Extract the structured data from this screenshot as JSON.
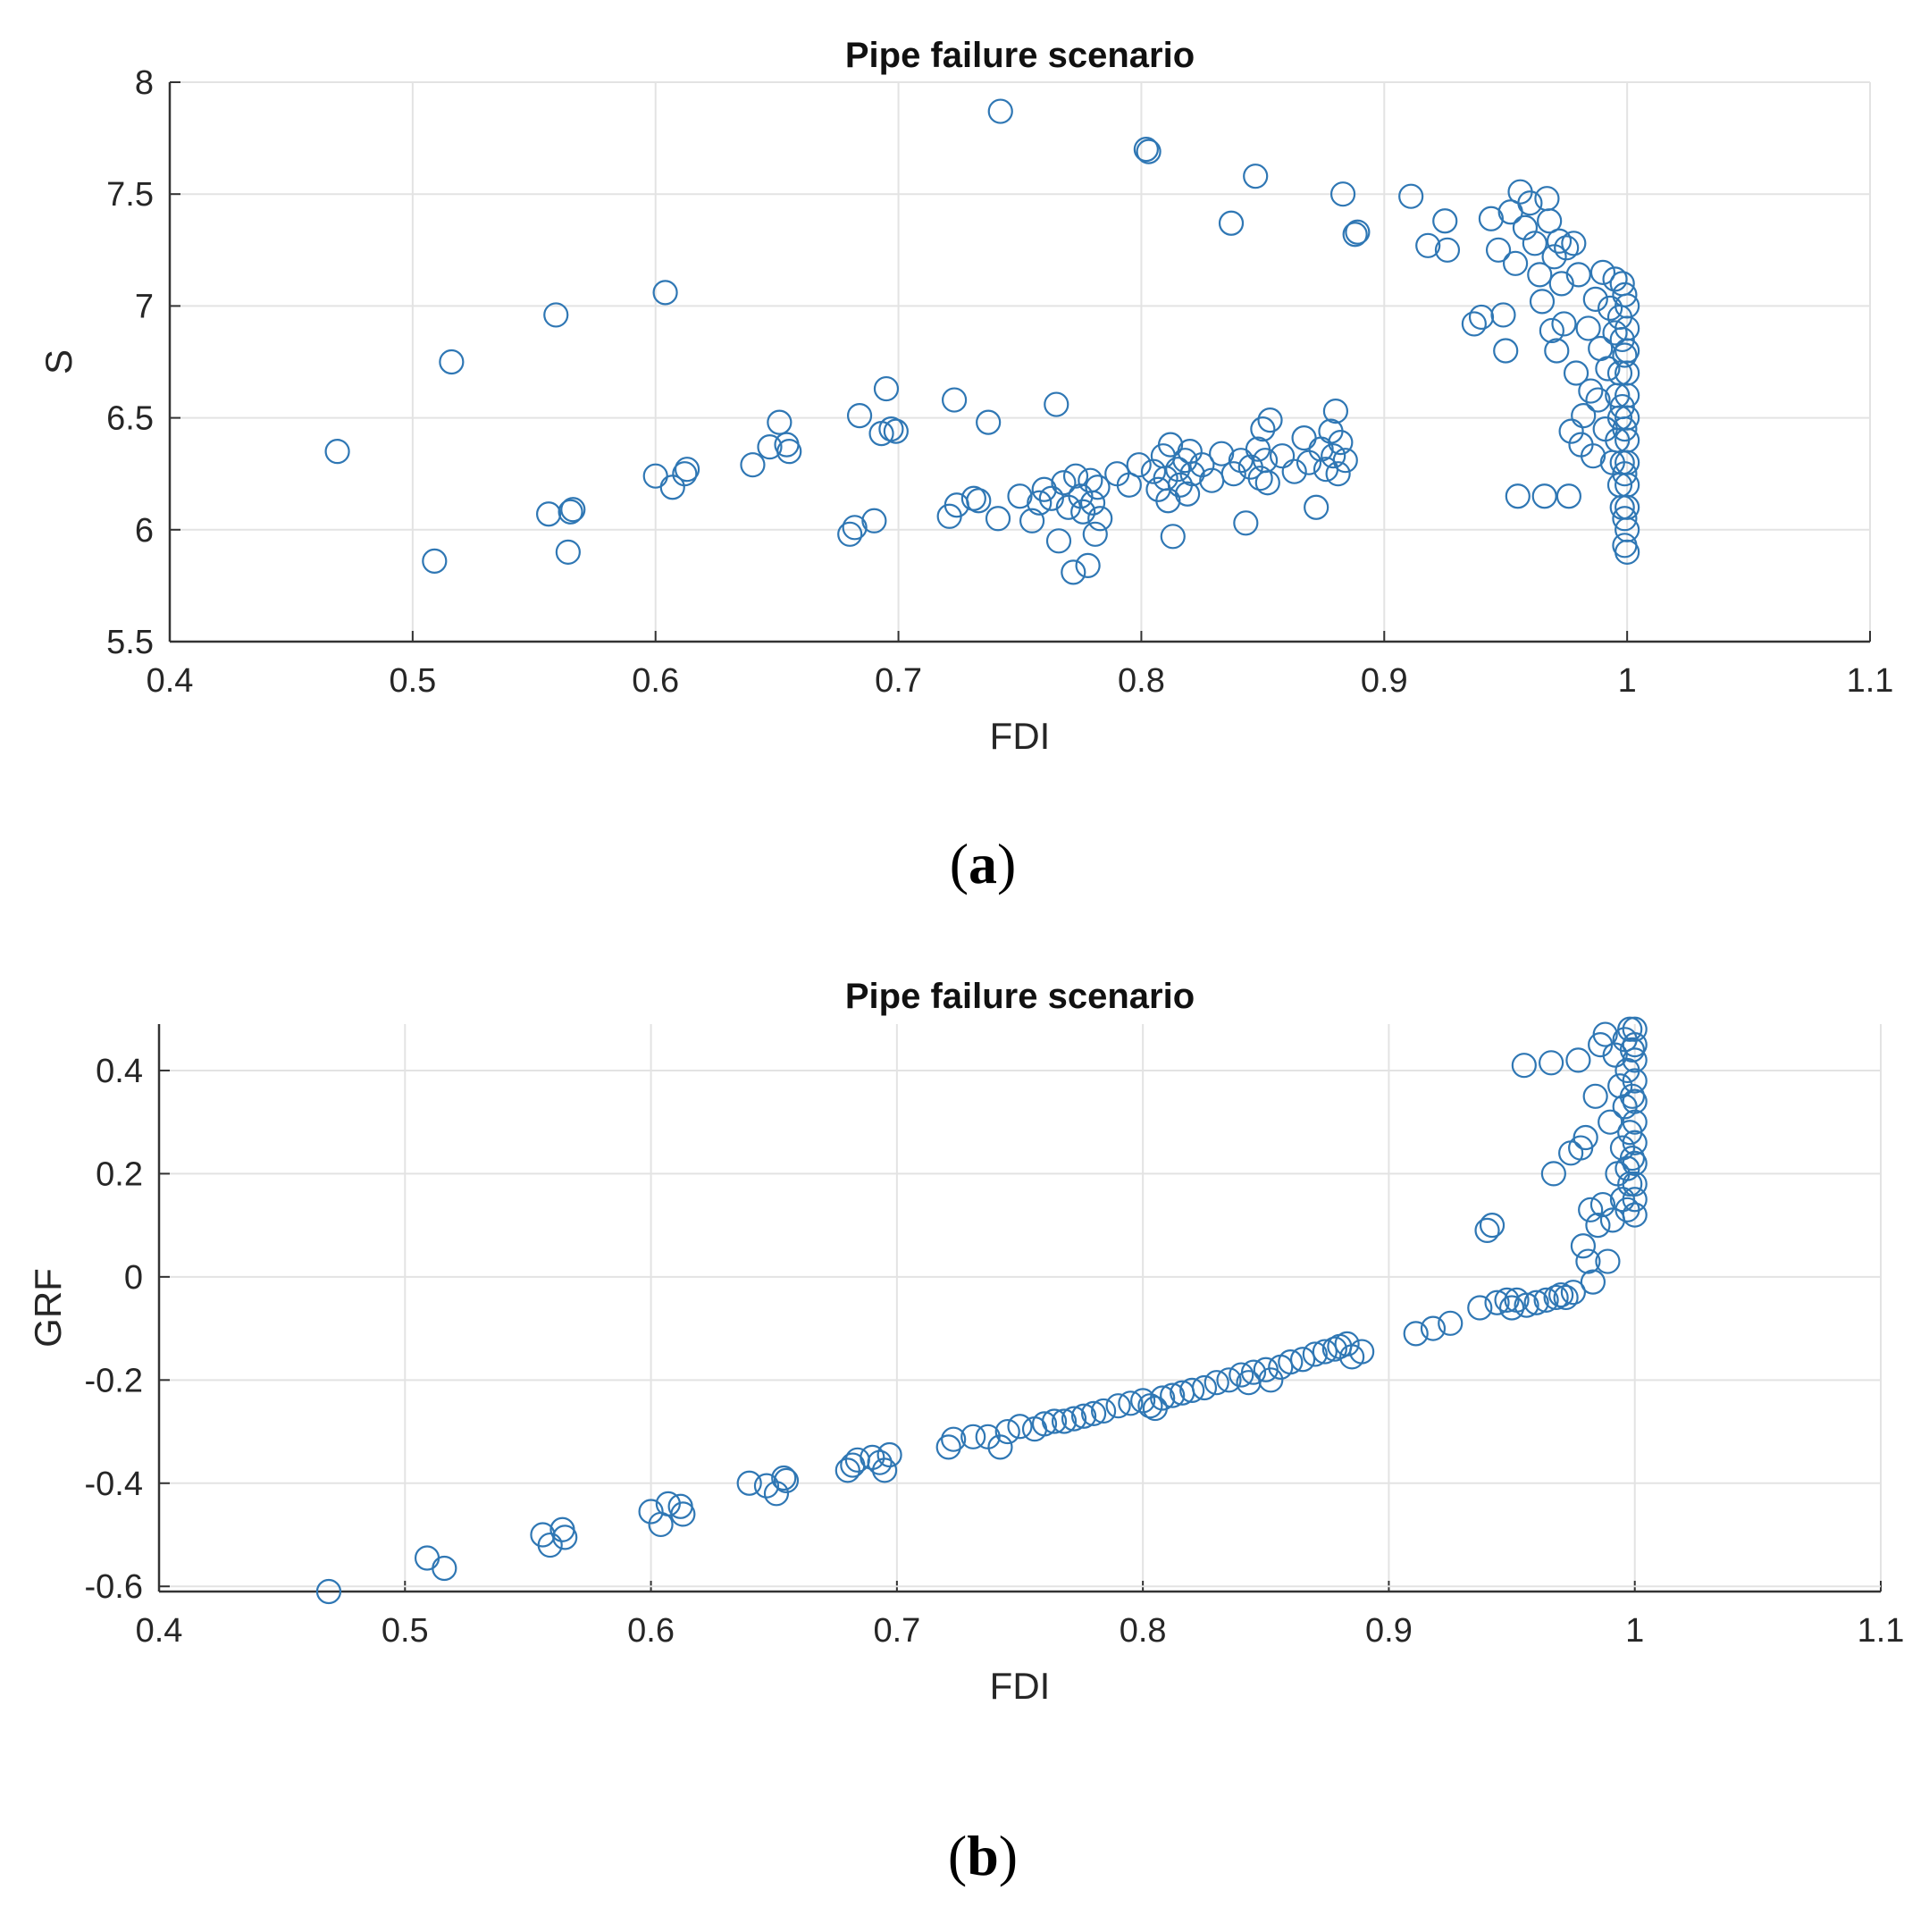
{
  "chart_data": [
    {
      "id": "a",
      "type": "scatter",
      "title": "Pipe failure scenario",
      "xlabel": "FDI",
      "ylabel": "S",
      "xlim": [
        0.4,
        1.1
      ],
      "ylim": [
        5.5,
        8
      ],
      "xticks": [
        "0.4",
        "0.5",
        "0.6",
        "0.7",
        "0.8",
        "0.9",
        "1",
        "1.1"
      ],
      "yticks": [
        "5.5",
        "6",
        "6.5",
        "7",
        "7.5",
        "8"
      ],
      "grid": true,
      "marker": "open-circle",
      "color": "#2f77b4",
      "panel_label": "(a)",
      "points": [
        [
          0.469,
          6.35
        ],
        [
          0.509,
          5.86
        ],
        [
          0.516,
          6.75
        ],
        [
          0.556,
          6.07
        ],
        [
          0.559,
          6.96
        ],
        [
          0.564,
          5.9
        ],
        [
          0.565,
          6.08
        ],
        [
          0.566,
          6.09
        ],
        [
          0.6,
          6.24
        ],
        [
          0.604,
          7.06
        ],
        [
          0.607,
          6.19
        ],
        [
          0.612,
          6.25
        ],
        [
          0.613,
          6.27
        ],
        [
          0.64,
          6.29
        ],
        [
          0.647,
          6.37
        ],
        [
          0.651,
          6.48
        ],
        [
          0.654,
          6.38
        ],
        [
          0.655,
          6.35
        ],
        [
          0.68,
          5.98
        ],
        [
          0.682,
          6.01
        ],
        [
          0.684,
          6.51
        ],
        [
          0.69,
          6.04
        ],
        [
          0.693,
          6.43
        ],
        [
          0.695,
          6.63
        ],
        [
          0.697,
          6.45
        ],
        [
          0.699,
          6.44
        ],
        [
          0.721,
          6.06
        ],
        [
          0.723,
          6.58
        ],
        [
          0.724,
          6.11
        ],
        [
          0.731,
          6.14
        ],
        [
          0.733,
          6.13
        ],
        [
          0.737,
          6.48
        ],
        [
          0.741,
          6.05
        ],
        [
          0.742,
          7.87
        ],
        [
          0.75,
          6.15
        ],
        [
          0.755,
          6.04
        ],
        [
          0.758,
          6.12
        ],
        [
          0.76,
          6.18
        ],
        [
          0.763,
          6.14
        ],
        [
          0.765,
          6.56
        ],
        [
          0.766,
          5.95
        ],
        [
          0.768,
          6.21
        ],
        [
          0.77,
          6.1
        ],
        [
          0.772,
          5.81
        ],
        [
          0.773,
          6.24
        ],
        [
          0.775,
          6.15
        ],
        [
          0.776,
          6.08
        ],
        [
          0.778,
          5.84
        ],
        [
          0.779,
          6.22
        ],
        [
          0.78,
          6.12
        ],
        [
          0.781,
          5.98
        ],
        [
          0.782,
          6.19
        ],
        [
          0.783,
          6.05
        ],
        [
          0.79,
          6.25
        ],
        [
          0.795,
          6.2
        ],
        [
          0.799,
          6.29
        ],
        [
          0.802,
          7.7
        ],
        [
          0.803,
          7.69
        ],
        [
          0.805,
          6.26
        ],
        [
          0.807,
          6.18
        ],
        [
          0.809,
          6.33
        ],
        [
          0.81,
          6.23
        ],
        [
          0.811,
          6.13
        ],
        [
          0.812,
          6.38
        ],
        [
          0.813,
          5.97
        ],
        [
          0.815,
          6.27
        ],
        [
          0.816,
          6.2
        ],
        [
          0.818,
          6.31
        ],
        [
          0.819,
          6.16
        ],
        [
          0.82,
          6.35
        ],
        [
          0.821,
          6.25
        ],
        [
          0.825,
          6.29
        ],
        [
          0.829,
          6.22
        ],
        [
          0.833,
          6.34
        ],
        [
          0.837,
          7.37
        ],
        [
          0.838,
          6.25
        ],
        [
          0.841,
          6.31
        ],
        [
          0.843,
          6.03
        ],
        [
          0.845,
          6.28
        ],
        [
          0.847,
          7.58
        ],
        [
          0.848,
          6.36
        ],
        [
          0.849,
          6.23
        ],
        [
          0.85,
          6.45
        ],
        [
          0.851,
          6.31
        ],
        [
          0.852,
          6.21
        ],
        [
          0.853,
          6.49
        ],
        [
          0.858,
          6.33
        ],
        [
          0.863,
          6.26
        ],
        [
          0.867,
          6.41
        ],
        [
          0.869,
          6.3
        ],
        [
          0.872,
          6.1
        ],
        [
          0.874,
          6.36
        ],
        [
          0.876,
          6.27
        ],
        [
          0.878,
          6.44
        ],
        [
          0.879,
          6.33
        ],
        [
          0.88,
          6.53
        ],
        [
          0.881,
          6.25
        ],
        [
          0.882,
          6.39
        ],
        [
          0.883,
          7.5
        ],
        [
          0.884,
          6.31
        ],
        [
          0.888,
          7.32
        ],
        [
          0.889,
          7.33
        ],
        [
          0.911,
          7.49
        ],
        [
          0.918,
          7.27
        ],
        [
          0.925,
          7.38
        ],
        [
          0.926,
          7.25
        ],
        [
          0.937,
          6.92
        ],
        [
          0.94,
          6.95
        ],
        [
          0.944,
          7.39
        ],
        [
          0.947,
          7.25
        ],
        [
          0.949,
          6.96
        ],
        [
          0.95,
          6.8
        ],
        [
          0.952,
          7.42
        ],
        [
          0.954,
          7.19
        ],
        [
          0.955,
          6.15
        ],
        [
          0.956,
          7.51
        ],
        [
          0.958,
          7.35
        ],
        [
          0.96,
          7.46
        ],
        [
          0.962,
          7.28
        ],
        [
          0.964,
          7.14
        ],
        [
          0.965,
          7.02
        ],
        [
          0.966,
          6.15
        ],
        [
          0.967,
          7.48
        ],
        [
          0.968,
          7.38
        ],
        [
          0.969,
          6.89
        ],
        [
          0.97,
          7.22
        ],
        [
          0.971,
          6.8
        ],
        [
          0.972,
          7.29
        ],
        [
          0.973,
          7.1
        ],
        [
          0.974,
          6.92
        ],
        [
          0.975,
          7.26
        ],
        [
          0.976,
          6.15
        ],
        [
          0.977,
          6.44
        ],
        [
          0.978,
          7.28
        ],
        [
          0.979,
          6.7
        ],
        [
          0.98,
          7.14
        ],
        [
          0.981,
          6.38
        ],
        [
          0.982,
          6.51
        ],
        [
          0.984,
          6.9
        ],
        [
          0.985,
          6.62
        ],
        [
          0.986,
          6.33
        ],
        [
          0.987,
          7.03
        ],
        [
          0.988,
          6.58
        ],
        [
          0.989,
          6.81
        ],
        [
          0.99,
          7.15
        ],
        [
          0.991,
          6.45
        ],
        [
          0.992,
          6.72
        ],
        [
          0.993,
          6.99
        ],
        [
          0.994,
          6.3
        ],
        [
          0.995,
          7.12
        ],
        [
          0.995,
          6.88
        ],
        [
          0.996,
          6.6
        ],
        [
          0.996,
          6.4
        ],
        [
          0.997,
          6.95
        ],
        [
          0.997,
          6.7
        ],
        [
          0.997,
          6.5
        ],
        [
          0.997,
          6.2
        ],
        [
          0.998,
          7.1
        ],
        [
          0.998,
          6.85
        ],
        [
          0.998,
          6.55
        ],
        [
          0.998,
          6.3
        ],
        [
          0.998,
          6.1
        ],
        [
          0.999,
          7.05
        ],
        [
          0.999,
          6.78
        ],
        [
          0.999,
          6.45
        ],
        [
          0.999,
          6.25
        ],
        [
          0.999,
          6.05
        ],
        [
          0.999,
          5.93
        ],
        [
          1.0,
          7.0
        ],
        [
          1.0,
          6.9
        ],
        [
          1.0,
          6.8
        ],
        [
          1.0,
          6.7
        ],
        [
          1.0,
          6.6
        ],
        [
          1.0,
          6.5
        ],
        [
          1.0,
          6.4
        ],
        [
          1.0,
          6.3
        ],
        [
          1.0,
          6.2
        ],
        [
          1.0,
          6.1
        ],
        [
          1.0,
          6.0
        ],
        [
          1.0,
          5.9
        ]
      ]
    },
    {
      "id": "b",
      "type": "scatter",
      "title": "Pipe failure scenario",
      "xlabel": "FDI",
      "ylabel": "GRF",
      "xlim": [
        0.4,
        1.1
      ],
      "ylim": [
        -0.61,
        0.49
      ],
      "xticks": [
        "0.4",
        "0.5",
        "0.6",
        "0.7",
        "0.8",
        "0.9",
        "1",
        "1.1"
      ],
      "yticks": [
        "-0.6",
        "-0.4",
        "-0.2",
        "0",
        "0.2",
        "0.4"
      ],
      "grid": true,
      "marker": "open-circle",
      "color": "#2f77b4",
      "panel_label": "(b)",
      "points": [
        [
          0.469,
          -0.61
        ],
        [
          0.509,
          -0.545
        ],
        [
          0.516,
          -0.565
        ],
        [
          0.556,
          -0.5
        ],
        [
          0.559,
          -0.52
        ],
        [
          0.564,
          -0.49
        ],
        [
          0.565,
          -0.505
        ],
        [
          0.6,
          -0.455
        ],
        [
          0.604,
          -0.48
        ],
        [
          0.607,
          -0.44
        ],
        [
          0.612,
          -0.445
        ],
        [
          0.613,
          -0.46
        ],
        [
          0.64,
          -0.4
        ],
        [
          0.647,
          -0.405
        ],
        [
          0.651,
          -0.42
        ],
        [
          0.654,
          -0.39
        ],
        [
          0.655,
          -0.395
        ],
        [
          0.68,
          -0.375
        ],
        [
          0.682,
          -0.365
        ],
        [
          0.684,
          -0.355
        ],
        [
          0.69,
          -0.35
        ],
        [
          0.693,
          -0.36
        ],
        [
          0.695,
          -0.375
        ],
        [
          0.697,
          -0.345
        ],
        [
          0.721,
          -0.33
        ],
        [
          0.723,
          -0.315
        ],
        [
          0.731,
          -0.31
        ],
        [
          0.737,
          -0.31
        ],
        [
          0.742,
          -0.33
        ],
        [
          0.745,
          -0.3
        ],
        [
          0.75,
          -0.29
        ],
        [
          0.756,
          -0.295
        ],
        [
          0.76,
          -0.285
        ],
        [
          0.764,
          -0.28
        ],
        [
          0.768,
          -0.28
        ],
        [
          0.772,
          -0.275
        ],
        [
          0.776,
          -0.27
        ],
        [
          0.78,
          -0.265
        ],
        [
          0.784,
          -0.26
        ],
        [
          0.79,
          -0.25
        ],
        [
          0.795,
          -0.245
        ],
        [
          0.8,
          -0.24
        ],
        [
          0.803,
          -0.25
        ],
        [
          0.805,
          -0.255
        ],
        [
          0.808,
          -0.235
        ],
        [
          0.812,
          -0.23
        ],
        [
          0.816,
          -0.225
        ],
        [
          0.82,
          -0.22
        ],
        [
          0.825,
          -0.215
        ],
        [
          0.83,
          -0.205
        ],
        [
          0.835,
          -0.2
        ],
        [
          0.84,
          -0.19
        ],
        [
          0.843,
          -0.205
        ],
        [
          0.845,
          -0.185
        ],
        [
          0.85,
          -0.18
        ],
        [
          0.852,
          -0.2
        ],
        [
          0.856,
          -0.175
        ],
        [
          0.86,
          -0.165
        ],
        [
          0.865,
          -0.16
        ],
        [
          0.87,
          -0.15
        ],
        [
          0.874,
          -0.145
        ],
        [
          0.878,
          -0.14
        ],
        [
          0.88,
          -0.135
        ],
        [
          0.883,
          -0.13
        ],
        [
          0.885,
          -0.155
        ],
        [
          0.889,
          -0.145
        ],
        [
          0.911,
          -0.11
        ],
        [
          0.918,
          -0.1
        ],
        [
          0.925,
          -0.09
        ],
        [
          0.937,
          -0.06
        ],
        [
          0.94,
          0.09
        ],
        [
          0.942,
          0.1
        ],
        [
          0.944,
          -0.05
        ],
        [
          0.948,
          -0.045
        ],
        [
          0.95,
          -0.06
        ],
        [
          0.952,
          -0.045
        ],
        [
          0.955,
          0.41
        ],
        [
          0.956,
          -0.055
        ],
        [
          0.96,
          -0.05
        ],
        [
          0.964,
          -0.045
        ],
        [
          0.966,
          0.415
        ],
        [
          0.967,
          0.2
        ],
        [
          0.968,
          -0.04
        ],
        [
          0.97,
          -0.035
        ],
        [
          0.972,
          -0.04
        ],
        [
          0.974,
          0.24
        ],
        [
          0.975,
          -0.03
        ],
        [
          0.977,
          0.42
        ],
        [
          0.978,
          0.25
        ],
        [
          0.979,
          0.06
        ],
        [
          0.98,
          0.27
        ],
        [
          0.981,
          0.03
        ],
        [
          0.982,
          0.13
        ],
        [
          0.983,
          -0.01
        ],
        [
          0.984,
          0.35
        ],
        [
          0.985,
          0.1
        ],
        [
          0.986,
          0.45
        ],
        [
          0.987,
          0.14
        ],
        [
          0.988,
          0.47
        ],
        [
          0.989,
          0.03
        ],
        [
          0.99,
          0.3
        ],
        [
          0.991,
          0.11
        ],
        [
          0.992,
          0.43
        ],
        [
          0.993,
          0.2
        ],
        [
          0.994,
          0.37
        ],
        [
          0.995,
          0.15
        ],
        [
          0.995,
          0.25
        ],
        [
          0.996,
          0.46
        ],
        [
          0.996,
          0.33
        ],
        [
          0.997,
          0.21
        ],
        [
          0.997,
          0.13
        ],
        [
          0.997,
          0.4
        ],
        [
          0.998,
          0.48
        ],
        [
          0.998,
          0.28
        ],
        [
          0.998,
          0.18
        ],
        [
          0.999,
          0.35
        ],
        [
          0.999,
          0.23
        ],
        [
          0.999,
          0.44
        ],
        [
          1.0,
          0.48
        ],
        [
          1.0,
          0.45
        ],
        [
          1.0,
          0.42
        ],
        [
          1.0,
          0.38
        ],
        [
          1.0,
          0.34
        ],
        [
          1.0,
          0.3
        ],
        [
          1.0,
          0.26
        ],
        [
          1.0,
          0.22
        ],
        [
          1.0,
          0.18
        ],
        [
          1.0,
          0.15
        ],
        [
          1.0,
          0.12
        ]
      ]
    }
  ]
}
